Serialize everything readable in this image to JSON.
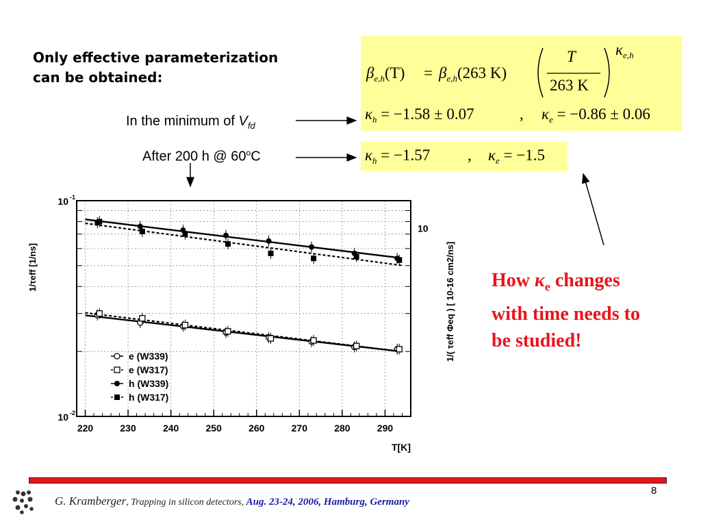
{
  "heading": {
    "line1": "Only effective parameterization",
    "line2": "can be obtained:"
  },
  "labels": {
    "minimum_prefix": "In the minimum of ",
    "minimum_var": "V",
    "minimum_sub": "fd",
    "after_prefix": "After 200 h @ 60",
    "after_sup": "o",
    "after_suffix": "C"
  },
  "equations": {
    "formula": {
      "beta": "β",
      "sub_eh": "e,h",
      "arg": "(T)",
      "eq": "=",
      "ref": "(263 K)",
      "num": "T",
      "den": "263 K",
      "kappa": "κ"
    },
    "min_h": {
      "kappa": "κ",
      "sub": "h",
      "value": "= −1.58 ± 0.07"
    },
    "min_e": {
      "kappa": "κ",
      "sub": "e",
      "value": "= −0.86 ± 0.06"
    },
    "after_h": {
      "kappa": "κ",
      "sub": "h",
      "value": "= −1.57"
    },
    "after_e": {
      "kappa": "κ",
      "sub": "e",
      "value": "= −1.5"
    },
    "separator": ","
  },
  "note": {
    "line1_prefix": "How ",
    "kappa": "κ",
    "sub": "e",
    "line1_suffix": " changes",
    "line2": "with time needs to",
    "line3": "be studied!"
  },
  "footer": {
    "author": "G. Kramberger",
    "talk": ", Trapping in silicon detectors, ",
    "place": "Aug.  23-24, 2006, Hamburg, Germany",
    "page": "8"
  },
  "colors": {
    "note": "#e8151b",
    "eq_background": "#ffff99",
    "footer_place": "#1a1aa6",
    "rule": "#e8151b"
  },
  "chart_data": {
    "type": "scatter",
    "xlabel": "T[K]",
    "ylabel_left": "1/τeff [1/ns]",
    "ylabel_right": "1/( τeff Φeq ) [ 10-16 cm2/ns]",
    "xlim": [
      218,
      296
    ],
    "ylim": [
      0.01,
      0.1
    ],
    "yscale": "log",
    "x_ticks": [
      "220",
      "230",
      "240",
      "250",
      "260",
      "270",
      "280",
      "290"
    ],
    "y_ticks_left": {
      "top_base": "10",
      "top_exp": "-1",
      "bottom_base": "10",
      "bottom_exp": "-2"
    },
    "y_tick_right": "10",
    "grid": true,
    "legend_position": "bottom-left",
    "series": [
      {
        "name": "e (W339)",
        "marker": "open-circle",
        "line": "solid",
        "x": [
          223,
          233,
          243,
          253,
          263,
          273,
          283,
          293
        ],
        "y": [
          0.0295,
          0.0272,
          0.0262,
          0.0245,
          0.0232,
          0.0222,
          0.021,
          0.0205
        ]
      },
      {
        "name": "e (W317)",
        "marker": "open-square",
        "line": "dashed",
        "x": [
          223,
          233,
          243,
          253,
          263,
          273,
          283,
          293
        ],
        "y": [
          0.03,
          0.0285,
          0.0265,
          0.0248,
          0.023,
          0.0225,
          0.0212,
          0.0205
        ]
      },
      {
        "name": "h (W339)",
        "marker": "filled-circle",
        "line": "solid",
        "x": [
          223,
          233,
          243,
          253,
          263,
          273,
          283,
          293
        ],
        "y": [
          0.079,
          0.076,
          0.073,
          0.069,
          0.065,
          0.061,
          0.057,
          0.054
        ]
      },
      {
        "name": "h (W317)",
        "marker": "filled-square",
        "line": "dashed",
        "x": [
          223,
          233,
          243,
          253,
          263,
          273,
          283,
          293
        ],
        "y": [
          0.08,
          0.072,
          0.07,
          0.063,
          0.057,
          0.054,
          0.055,
          0.053
        ]
      }
    ]
  }
}
